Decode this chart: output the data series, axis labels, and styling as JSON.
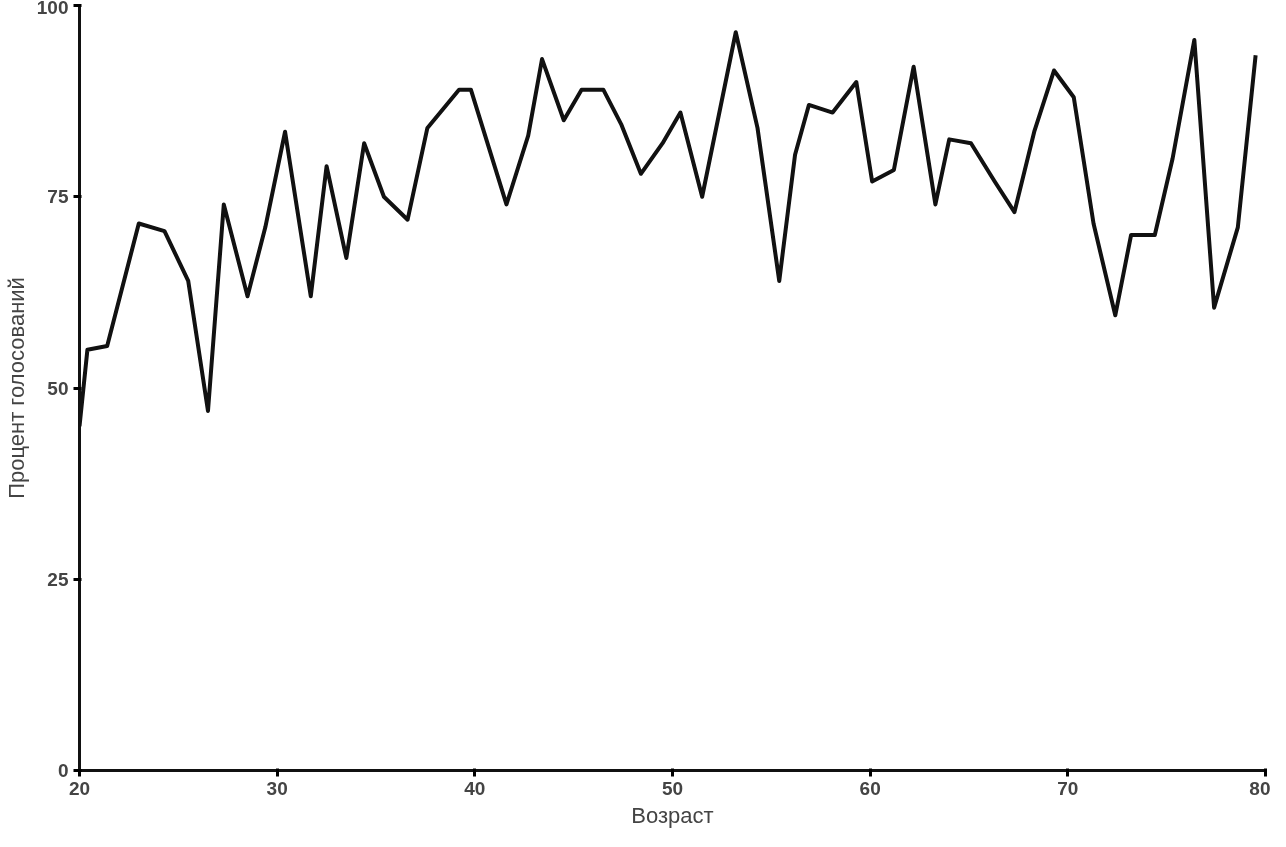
{
  "chart_data": {
    "type": "line",
    "xlabel": "Возраст",
    "ylabel": "Процент голосований",
    "x": [
      20,
      20.4,
      21.4,
      23,
      24.3,
      25.5,
      26.5,
      27.3,
      28.5,
      29.4,
      30.4,
      31.7,
      32.5,
      33.5,
      34.4,
      35.4,
      36.6,
      37.6,
      39.2,
      39.8,
      41.6,
      42.7,
      43.4,
      44.5,
      45.4,
      46.5,
      47.4,
      48.4,
      49.5,
      50.4,
      51.5,
      53.2,
      54.3,
      55.4,
      56.2,
      56.9,
      58.1,
      59.3,
      60.1,
      61.2,
      62.2,
      63.3,
      64,
      65.1,
      66.3,
      67.3,
      68.3,
      69.3,
      70.3,
      71.3,
      72.4,
      73.2,
      74.4,
      75.3,
      76.4,
      77.4,
      78.6,
      79.5
    ],
    "series": [
      {
        "color": "#111111",
        "values": [
          45,
          55,
          55.5,
          71.5,
          70.5,
          64,
          47,
          74,
          62,
          71,
          83.5,
          62,
          79,
          67,
          82,
          75,
          72,
          84,
          89,
          89,
          74,
          83,
          93,
          85,
          89,
          89,
          84.5,
          78,
          82,
          86,
          75,
          96.5,
          84,
          64,
          80.5,
          87,
          86,
          90,
          77,
          78.5,
          92,
          74,
          82.5,
          82,
          77,
          73,
          83.5,
          91.5,
          88,
          71.5,
          59.5,
          70,
          70,
          80,
          95.5,
          60.5,
          71,
          93.5
        ]
      }
    ],
    "xlim": [
      20,
      80
    ],
    "ylim": [
      0,
      100
    ],
    "xticks": [
      20,
      30,
      40,
      50,
      60,
      70,
      80
    ],
    "yticks": [
      0,
      25,
      50,
      75,
      100
    ],
    "grid": false,
    "marker": "none",
    "line_style": "solid"
  }
}
